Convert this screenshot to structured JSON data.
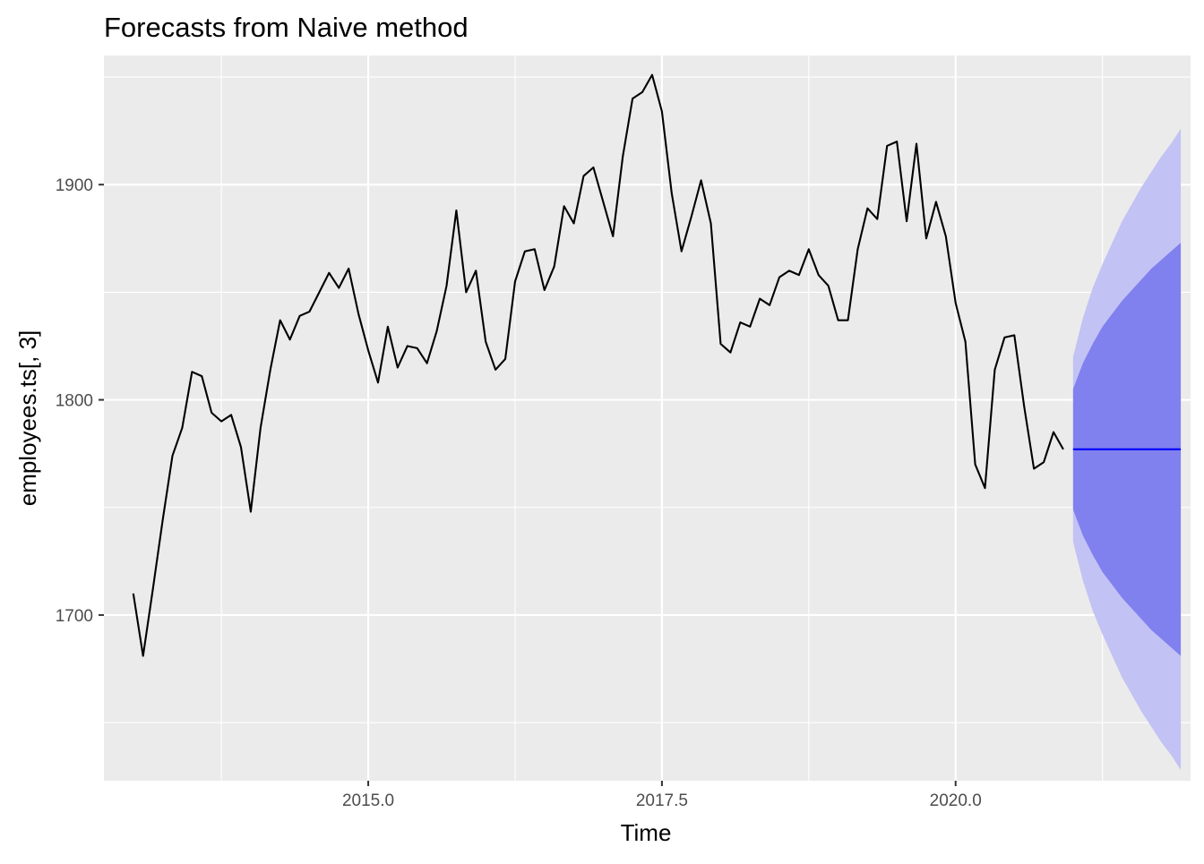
{
  "chart_data": {
    "type": "line",
    "title": "Forecasts from Naive method",
    "xlabel": "Time",
    "ylabel": "employees.ts[, 3]",
    "xlim": [
      2012.75,
      2022.0
    ],
    "ylim": [
      1623,
      1960
    ],
    "x_ticks": [
      2015.0,
      2017.5,
      2020.0
    ],
    "x_tick_labels": [
      "2015.0",
      "2017.5",
      "2020.0"
    ],
    "x_minor_ticks": [
      2013.75,
      2016.25,
      2018.75,
      2021.25
    ],
    "y_ticks": [
      1700,
      1800,
      1900
    ],
    "y_tick_labels": [
      "1700",
      "1800",
      "1900"
    ],
    "y_minor_ticks": [
      1650,
      1750,
      1850,
      1950
    ],
    "grid": true,
    "legend": "none",
    "colors": {
      "panel": "#ebebeb",
      "grid": "#ffffff",
      "history_line": "#000000",
      "forecast_line": "#0000ff",
      "band_80": "#8080ee",
      "band_95": "#c2c2f5"
    },
    "series": [
      {
        "x": [
          2013.0,
          2013.0833,
          2013.1667,
          2013.25,
          2013.3333,
          2013.4167,
          2013.5,
          2013.5833,
          2013.6667,
          2013.75,
          2013.8333,
          2013.9167,
          2014.0,
          2014.0833,
          2014.1667,
          2014.25,
          2014.3333,
          2014.4167,
          2014.5,
          2014.5833,
          2014.6667,
          2014.75,
          2014.8333,
          2014.9167,
          2015.0,
          2015.0833,
          2015.1667,
          2015.25,
          2015.3333,
          2015.4167,
          2015.5,
          2015.5833,
          2015.6667,
          2015.75,
          2015.8333,
          2015.9167,
          2016.0,
          2016.0833,
          2016.1667,
          2016.25,
          2016.3333,
          2016.4167,
          2016.5,
          2016.5833,
          2016.6667,
          2016.75,
          2016.8333,
          2016.9167,
          2017.0,
          2017.0833,
          2017.1667,
          2017.25,
          2017.3333,
          2017.4167,
          2017.5,
          2017.5833,
          2017.6667,
          2017.75,
          2017.8333,
          2017.9167,
          2018.0,
          2018.0833,
          2018.1667,
          2018.25,
          2018.3333,
          2018.4167,
          2018.5,
          2018.5833,
          2018.6667,
          2018.75,
          2018.8333,
          2018.9167,
          2019.0,
          2019.0833,
          2019.1667,
          2019.25,
          2019.3333,
          2019.4167,
          2019.5,
          2019.5833,
          2019.6667,
          2019.75,
          2019.8333,
          2019.9167,
          2020.0,
          2020.0833,
          2020.1667,
          2020.25,
          2020.3333,
          2020.4167,
          2020.5,
          2020.5833,
          2020.6667,
          2020.75,
          2020.8333,
          2020.9167
        ],
        "values": [
          1710,
          1681,
          1712,
          1744,
          1774,
          1787,
          1813,
          1811,
          1794,
          1790,
          1793,
          1778,
          1748,
          1787,
          1814,
          1837,
          1828,
          1839,
          1841,
          1850,
          1859,
          1852,
          1861,
          1840,
          1823,
          1808,
          1834,
          1815,
          1825,
          1824,
          1817,
          1832,
          1853,
          1888,
          1850,
          1860,
          1827,
          1814,
          1819,
          1855,
          1869,
          1870,
          1851,
          1862,
          1890,
          1882,
          1904,
          1908,
          1892,
          1876,
          1913,
          1940,
          1943,
          1951,
          1934,
          1896,
          1869,
          1885,
          1902,
          1882,
          1826,
          1822,
          1836,
          1834,
          1847,
          1844,
          1857,
          1860,
          1858,
          1870,
          1858,
          1853,
          1837,
          1837,
          1870,
          1889,
          1884,
          1918,
          1920,
          1883,
          1919,
          1875,
          1892,
          1876,
          1845,
          1827,
          1770,
          1759,
          1814,
          1829,
          1830,
          1797,
          1768,
          1771,
          1785,
          1777
        ]
      }
    ],
    "forecast": {
      "x": [
        2021.0,
        2021.0833,
        2021.1667,
        2021.25,
        2021.3333,
        2021.4167,
        2021.5,
        2021.5833,
        2021.6667,
        2021.75,
        2021.8333,
        2021.9167
      ],
      "point": [
        1777,
        1777,
        1777,
        1777,
        1777,
        1777,
        1777,
        1777,
        1777,
        1777,
        1777,
        1777
      ],
      "lo80": [
        1749,
        1737,
        1728,
        1720,
        1714,
        1708,
        1703,
        1698,
        1693,
        1689,
        1685,
        1681
      ],
      "hi80": [
        1805,
        1817,
        1826,
        1834,
        1840,
        1846,
        1851,
        1856,
        1861,
        1865,
        1869,
        1873
      ],
      "lo95": [
        1734,
        1716,
        1702,
        1691,
        1681,
        1671,
        1663,
        1655,
        1648,
        1641,
        1635,
        1628
      ],
      "hi95": [
        1820,
        1838,
        1852,
        1863,
        1873,
        1883,
        1891,
        1899,
        1906,
        1913,
        1919,
        1926
      ]
    }
  }
}
